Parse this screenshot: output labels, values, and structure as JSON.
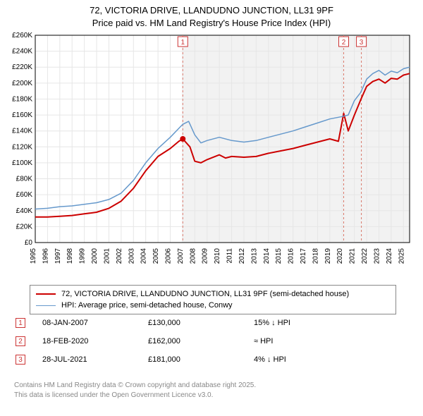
{
  "title_line1": "72, VICTORIA DRIVE, LLANDUDNO JUNCTION, LL31 9PF",
  "title_line2": "Price paid vs. HM Land Registry's House Price Index (HPI)",
  "chart": {
    "type": "line",
    "background_color": "#ffffff",
    "grid_color": "#e6e6e6",
    "border_color": "#000000",
    "shaded_region_color": "#f2f2f2",
    "shaded_region_start_year": 2007.02,
    "marker_line_color": "#d9786a",
    "marker_border_color": "#cc3333",
    "xlim": [
      1995,
      2025.5
    ],
    "xtick_years": [
      1995,
      1996,
      1997,
      1998,
      1999,
      2000,
      2001,
      2002,
      2003,
      2004,
      2005,
      2006,
      2007,
      2008,
      2009,
      2010,
      2011,
      2012,
      2013,
      2014,
      2015,
      2016,
      2017,
      2018,
      2019,
      2020,
      2021,
      2022,
      2023,
      2024,
      2025
    ],
    "ylim": [
      0,
      260000
    ],
    "ytick_step": 20000,
    "ytick_labels": [
      "£0",
      "£20K",
      "£40K",
      "£60K",
      "£80K",
      "£100K",
      "£120K",
      "£140K",
      "£160K",
      "£180K",
      "£200K",
      "£220K",
      "£240K",
      "£260K"
    ],
    "series": [
      {
        "name": "72, VICTORIA DRIVE, LLANDUDNO JUNCTION, LL31 9PF (semi-detached house)",
        "color": "#cc0000",
        "width": 2,
        "points": [
          [
            1995,
            32000
          ],
          [
            1996,
            32000
          ],
          [
            1997,
            33000
          ],
          [
            1998,
            34000
          ],
          [
            1999,
            36000
          ],
          [
            2000,
            38000
          ],
          [
            2001,
            43000
          ],
          [
            2002,
            52000
          ],
          [
            2003,
            68000
          ],
          [
            2004,
            90000
          ],
          [
            2005,
            108000
          ],
          [
            2006,
            118000
          ],
          [
            2006.7,
            127000
          ],
          [
            2007.02,
            130000
          ],
          [
            2007.6,
            120000
          ],
          [
            2008,
            102000
          ],
          [
            2008.5,
            100000
          ],
          [
            2009,
            104000
          ],
          [
            2010,
            110000
          ],
          [
            2010.5,
            106000
          ],
          [
            2011,
            108000
          ],
          [
            2012,
            107000
          ],
          [
            2013,
            108000
          ],
          [
            2014,
            112000
          ],
          [
            2015,
            115000
          ],
          [
            2016,
            118000
          ],
          [
            2017,
            122000
          ],
          [
            2018,
            126000
          ],
          [
            2019,
            130000
          ],
          [
            2019.7,
            127000
          ],
          [
            2020.13,
            162000
          ],
          [
            2020.5,
            140000
          ],
          [
            2021,
            160000
          ],
          [
            2021.57,
            181000
          ],
          [
            2022,
            196000
          ],
          [
            2022.5,
            202000
          ],
          [
            2023,
            205000
          ],
          [
            2023.5,
            200000
          ],
          [
            2024,
            206000
          ],
          [
            2024.5,
            205000
          ],
          [
            2025,
            210000
          ],
          [
            2025.5,
            212000
          ]
        ]
      },
      {
        "name": "HPI: Average price, semi-detached house, Conwy",
        "color": "#6699cc",
        "width": 1.5,
        "points": [
          [
            1995,
            42000
          ],
          [
            1996,
            43000
          ],
          [
            1997,
            45000
          ],
          [
            1998,
            46000
          ],
          [
            1999,
            48000
          ],
          [
            2000,
            50000
          ],
          [
            2001,
            54000
          ],
          [
            2002,
            62000
          ],
          [
            2003,
            78000
          ],
          [
            2004,
            100000
          ],
          [
            2005,
            118000
          ],
          [
            2006,
            132000
          ],
          [
            2007,
            148000
          ],
          [
            2007.5,
            152000
          ],
          [
            2008,
            135000
          ],
          [
            2008.5,
            125000
          ],
          [
            2009,
            128000
          ],
          [
            2010,
            132000
          ],
          [
            2011,
            128000
          ],
          [
            2012,
            126000
          ],
          [
            2013,
            128000
          ],
          [
            2014,
            132000
          ],
          [
            2015,
            136000
          ],
          [
            2016,
            140000
          ],
          [
            2017,
            145000
          ],
          [
            2018,
            150000
          ],
          [
            2019,
            155000
          ],
          [
            2020,
            158000
          ],
          [
            2020.5,
            160000
          ],
          [
            2021,
            178000
          ],
          [
            2021.5,
            188000
          ],
          [
            2022,
            205000
          ],
          [
            2022.5,
            212000
          ],
          [
            2023,
            216000
          ],
          [
            2023.5,
            210000
          ],
          [
            2024,
            215000
          ],
          [
            2024.5,
            213000
          ],
          [
            2025,
            218000
          ],
          [
            2025.5,
            220000
          ]
        ]
      }
    ],
    "sale_markers": [
      {
        "n": "1",
        "year": 2007.02
      },
      {
        "n": "2",
        "year": 2020.13
      },
      {
        "n": "3",
        "year": 2021.57
      }
    ]
  },
  "legend": {
    "items": [
      {
        "label": "72, VICTORIA DRIVE, LLANDUDNO JUNCTION, LL31 9PF (semi-detached house)",
        "color": "#cc0000",
        "width": 2
      },
      {
        "label": "HPI: Average price, semi-detached house, Conwy",
        "color": "#6699cc",
        "width": 1
      }
    ]
  },
  "sales": [
    {
      "n": "1",
      "date": "08-JAN-2007",
      "price": "£130,000",
      "delta": "15% ↓ HPI",
      "color": "#cc3333"
    },
    {
      "n": "2",
      "date": "18-FEB-2020",
      "price": "£162,000",
      "delta": "≈ HPI",
      "color": "#cc3333"
    },
    {
      "n": "3",
      "date": "28-JUL-2021",
      "price": "£181,000",
      "delta": "4% ↓ HPI",
      "color": "#cc3333"
    }
  ],
  "footer_line1": "Contains HM Land Registry data © Crown copyright and database right 2025.",
  "footer_line2": "This data is licensed under the Open Government Licence v3.0."
}
